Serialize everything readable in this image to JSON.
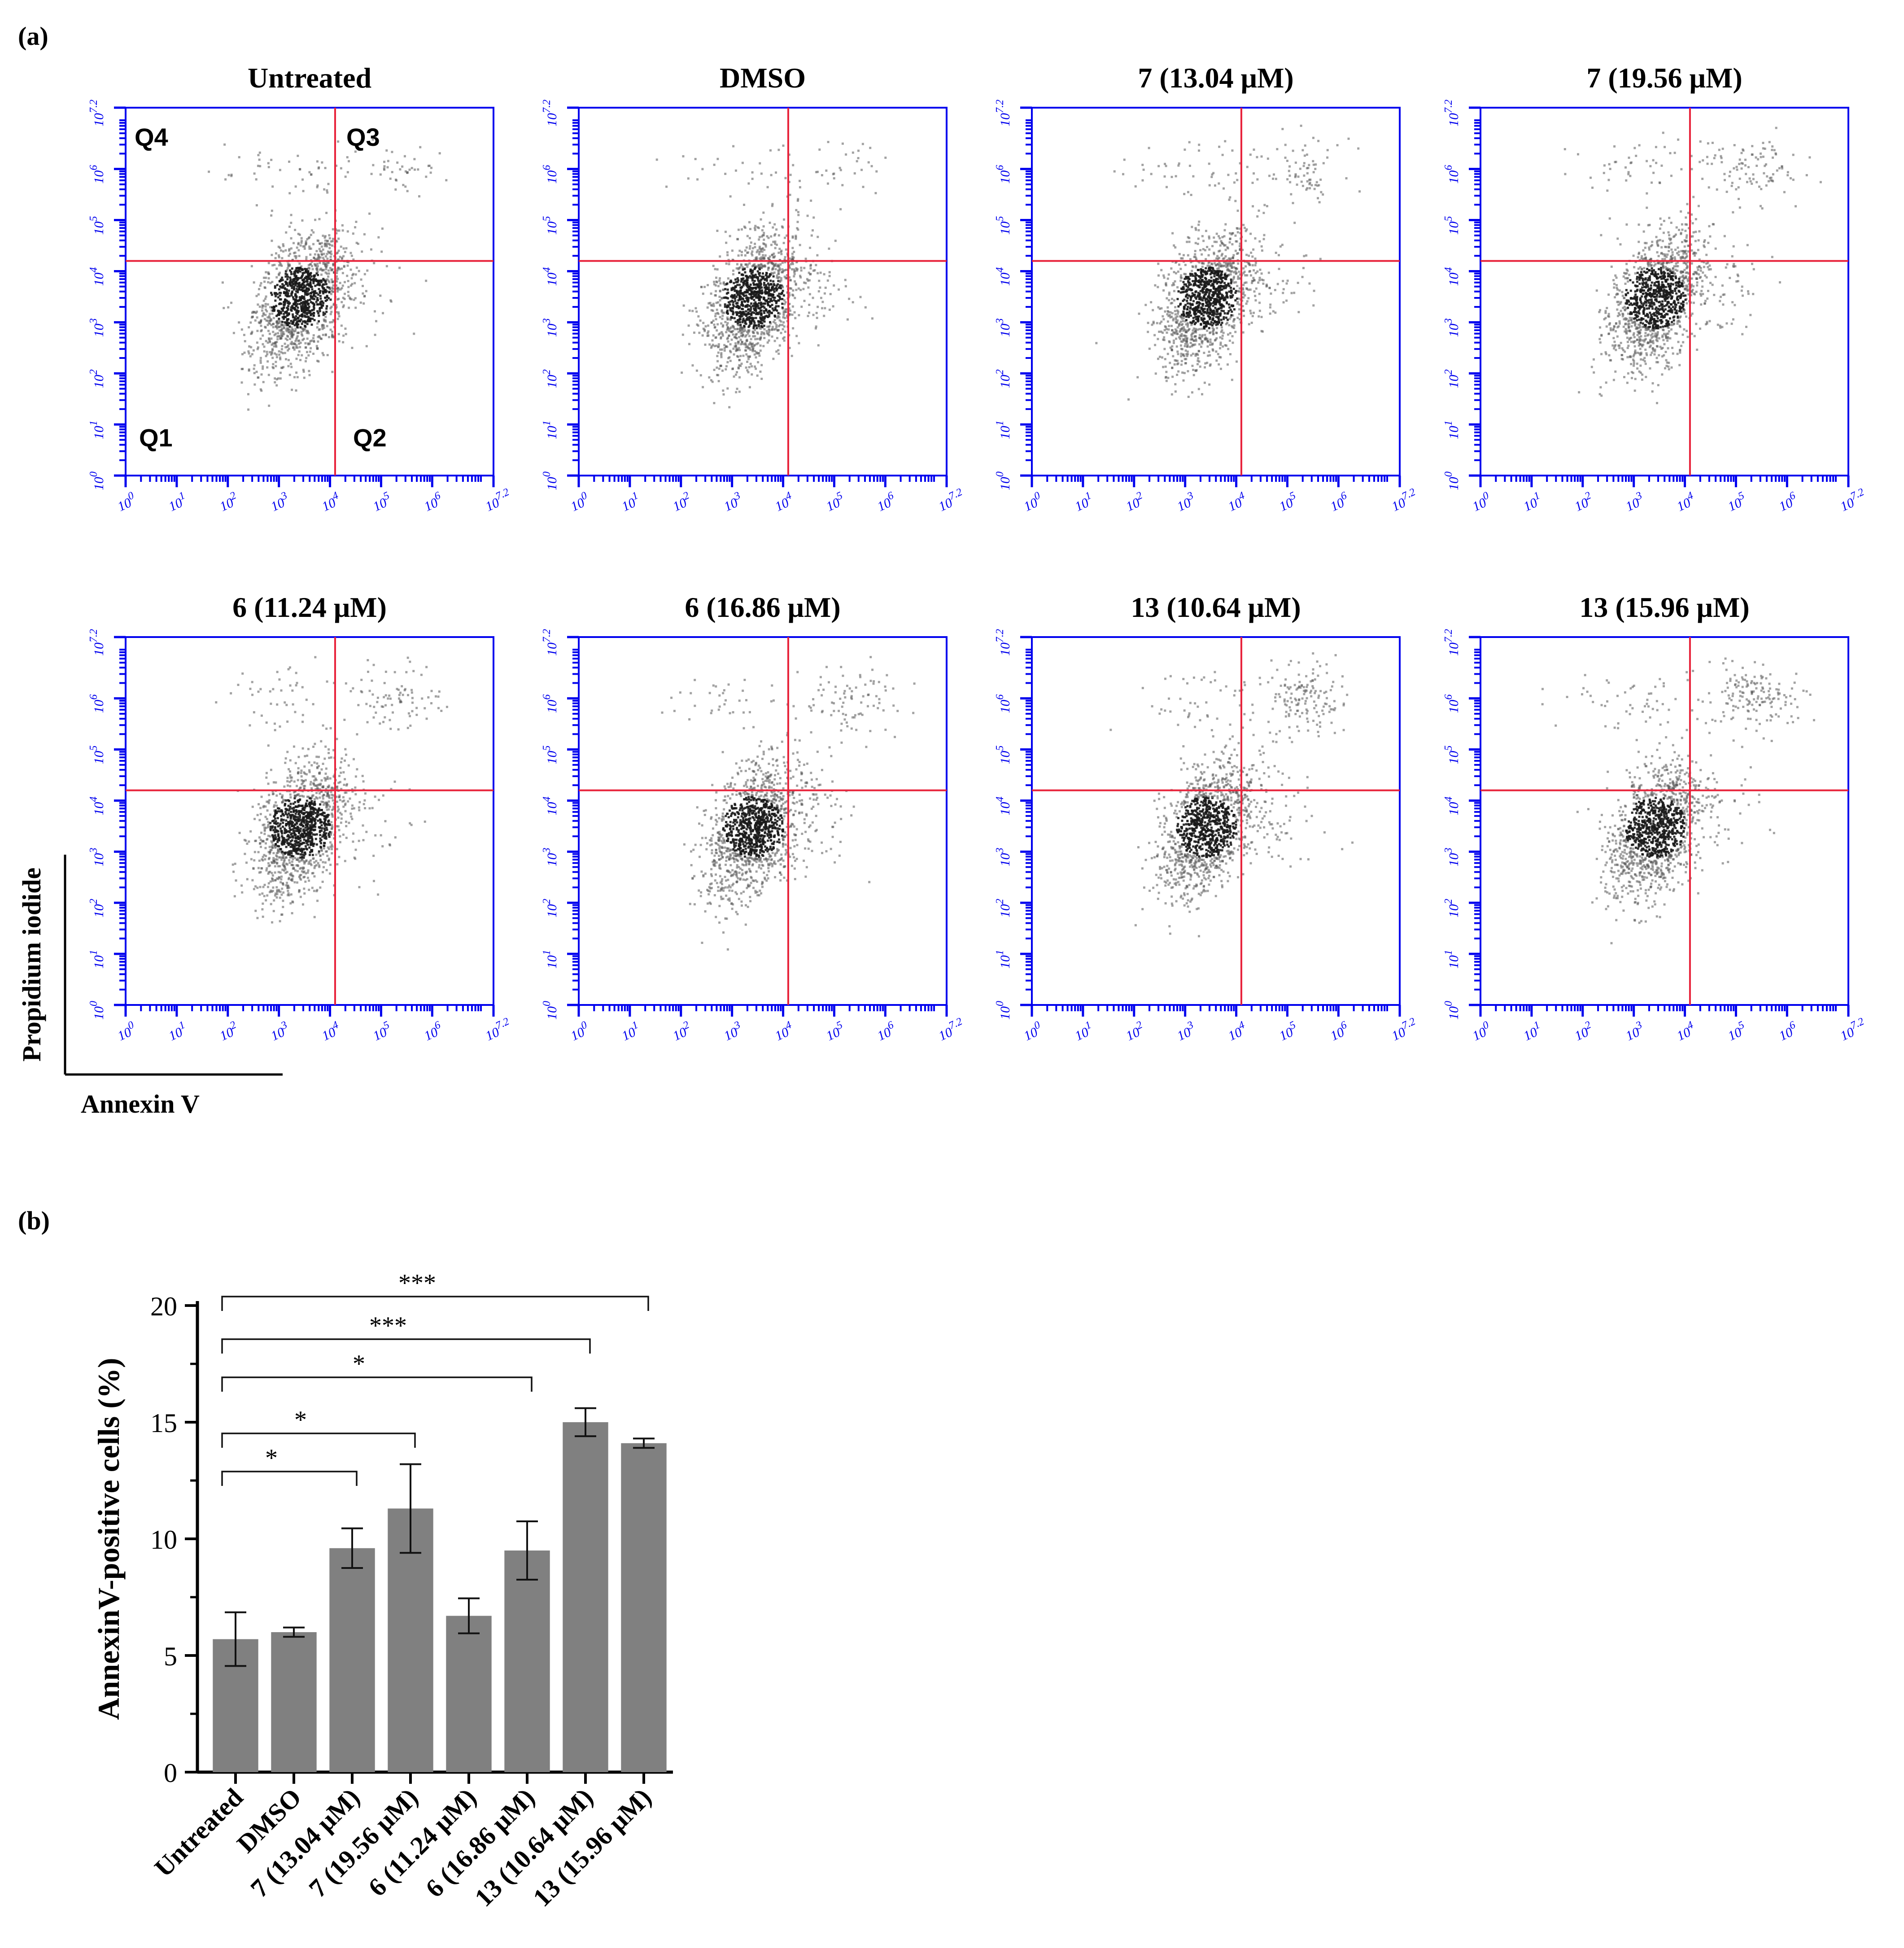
{
  "panel_a_label": "(a)",
  "panel_b_label": "(b)",
  "flow_axes": {
    "xlabel": "Annexin V",
    "ylabel": "Propidium iodide",
    "tick_labels": [
      "10",
      "10",
      "10",
      "10",
      "10",
      "10",
      "10"
    ],
    "tick_exponents": [
      "0",
      "1",
      "2",
      "3",
      "4",
      "5",
      "6",
      "7.2"
    ],
    "tick_values": [
      0,
      1,
      2,
      3,
      4,
      5,
      6,
      7.2
    ],
    "quadrants": [
      "Q1",
      "Q2",
      "Q3",
      "Q4"
    ]
  },
  "chart_data": [
    {
      "type": "scatter",
      "panel": "a",
      "scale": "log10",
      "xlim": [
        0,
        7.2
      ],
      "ylim": [
        0,
        7.2
      ],
      "xlabel": "Annexin V",
      "ylabel": "Propidium iodide",
      "quadrant_gate": [
        4.1,
        4.2
      ],
      "plots": [
        {
          "title": "Untreated",
          "apoptotic_fraction": 0.06,
          "late_fraction": 0.03
        },
        {
          "title": "DMSO",
          "apoptotic_fraction": 0.06,
          "late_fraction": 0.02
        },
        {
          "title": "7 (13.04 μM)",
          "apoptotic_fraction": 0.1,
          "late_fraction": 0.05
        },
        {
          "title": "7 (19.56 μM)",
          "apoptotic_fraction": 0.11,
          "late_fraction": 0.06
        },
        {
          "title": "6 (11.24 μM)",
          "apoptotic_fraction": 0.07,
          "late_fraction": 0.04
        },
        {
          "title": "6 (16.86 μM)",
          "apoptotic_fraction": 0.1,
          "late_fraction": 0.05
        },
        {
          "title": "13 (10.64 μM)",
          "apoptotic_fraction": 0.15,
          "late_fraction": 0.1
        },
        {
          "title": "13 (15.96 μM)",
          "apoptotic_fraction": 0.14,
          "late_fraction": 0.11
        }
      ]
    },
    {
      "type": "bar",
      "panel": "b",
      "categories": [
        "Untreated",
        "DMSO",
        "7 (13.04  μM)",
        "7 (19.56  μM)",
        "6 (11.24  μM)",
        "6 (16.86  μM)",
        "13 (10.64  μM)",
        "13 (15.96  μM)"
      ],
      "values": [
        5.7,
        6.0,
        9.6,
        11.3,
        6.7,
        9.5,
        15.0,
        14.1
      ],
      "errors": [
        1.15,
        0.2,
        0.85,
        1.9,
        0.75,
        1.25,
        0.6,
        0.2
      ],
      "ylabel": "AnnexinV-positive cells (%)",
      "ylim": [
        0,
        20
      ],
      "yticks": [
        0,
        5,
        10,
        15,
        20
      ],
      "significance": [
        {
          "from": 0,
          "to": 2,
          "label": "*"
        },
        {
          "from": 0,
          "to": 3,
          "label": "*"
        },
        {
          "from": 0,
          "to": 5,
          "label": "*"
        },
        {
          "from": 0,
          "to": 6,
          "label": "***"
        },
        {
          "from": 0,
          "to": 7,
          "label": "***"
        }
      ],
      "bar_color": "#808080"
    }
  ],
  "colors": {
    "axis_blue": "#0000ee",
    "gate_red": "#e8223a",
    "event_gray": "#555555",
    "bar_gray": "#808080"
  }
}
